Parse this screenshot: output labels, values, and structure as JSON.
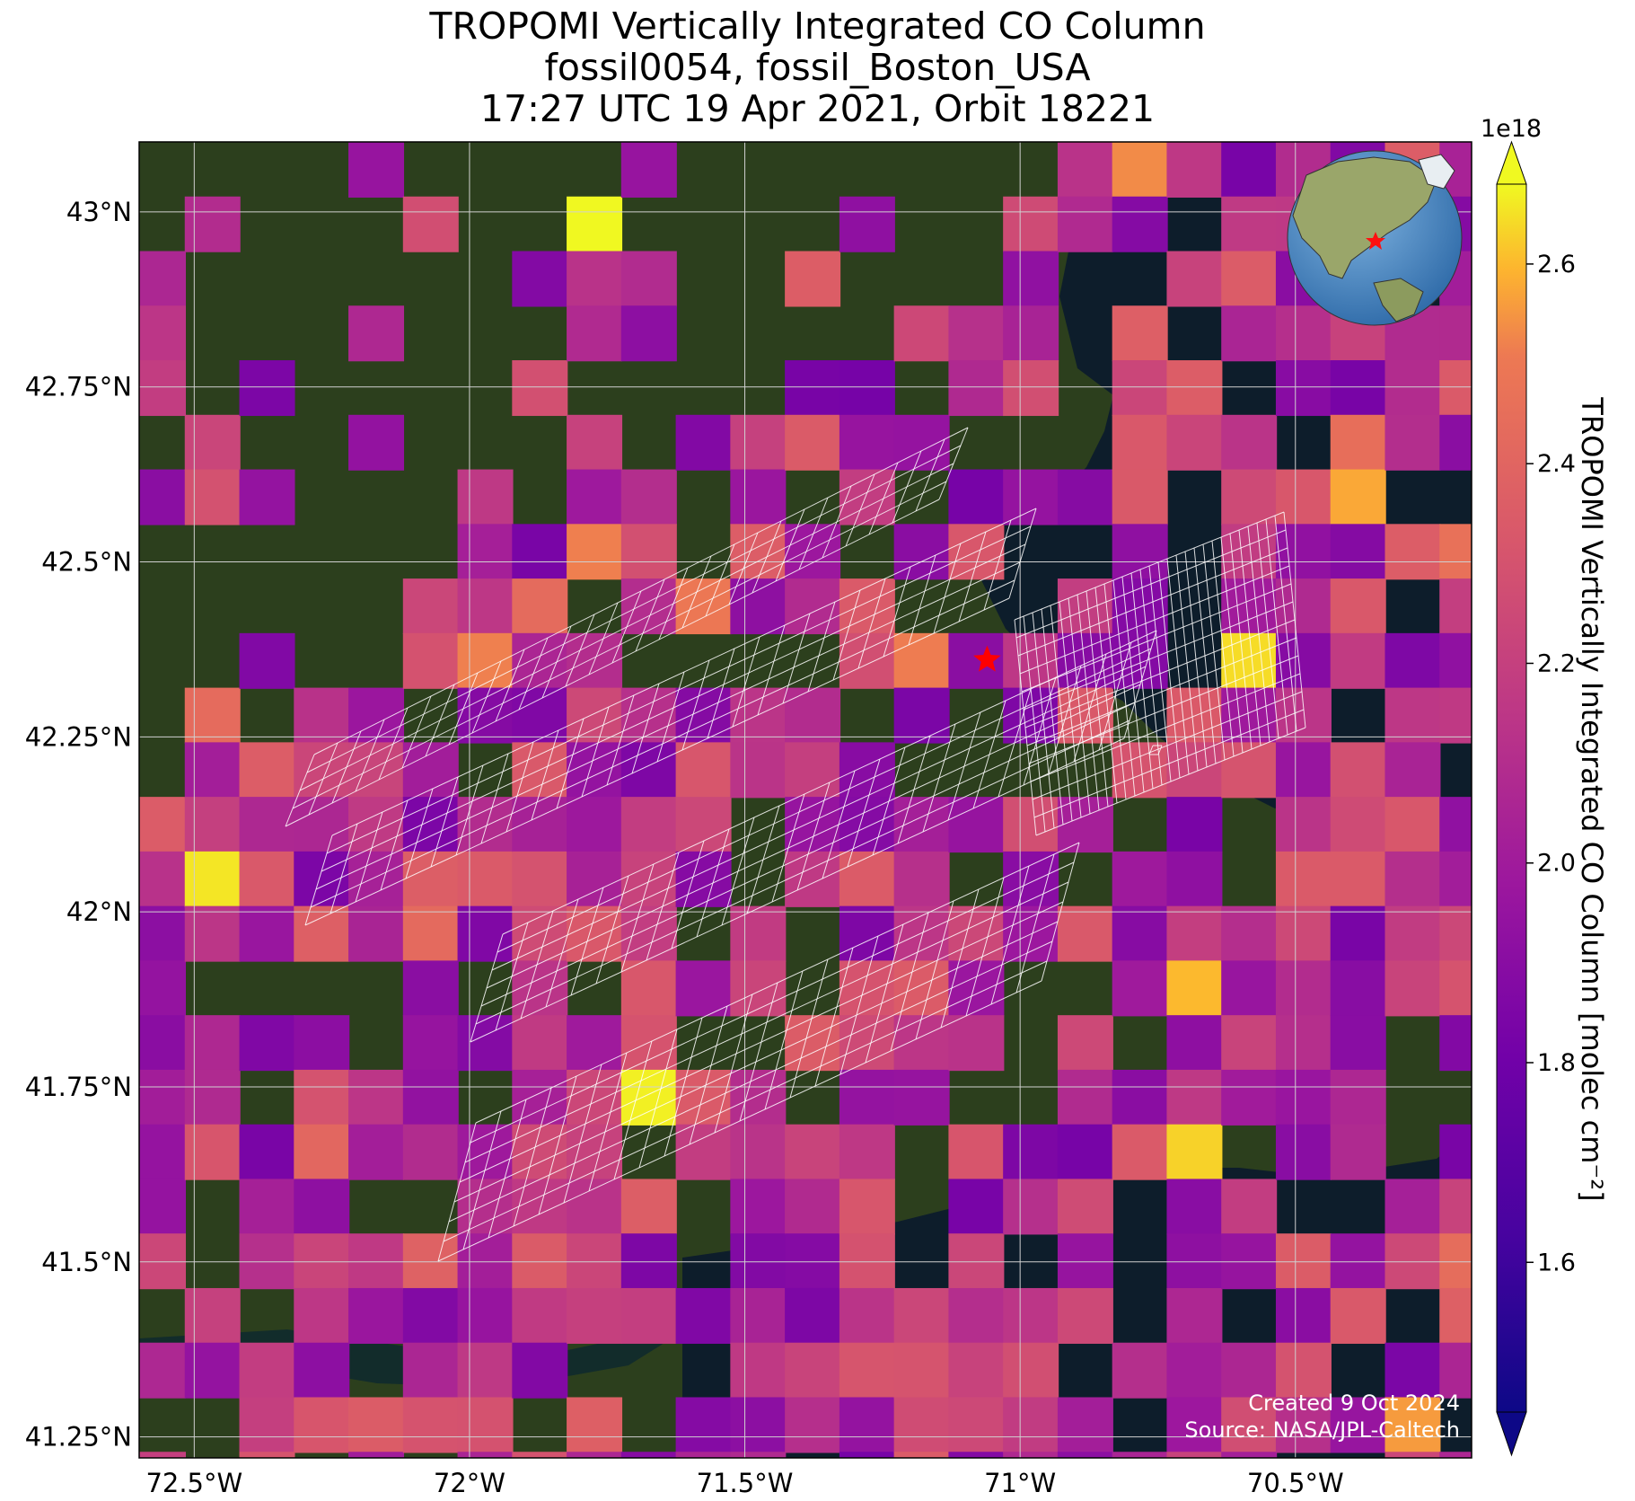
{
  "title": {
    "line1": "TROPOMI Vertically Integrated CO Column",
    "line2": "fossil0054, fossil_Boston_USA",
    "line3": "17:27 UTC 19 Apr 2021, Orbit 18221"
  },
  "map": {
    "lon_range": [
      -72.6,
      -70.18
    ],
    "lat_range": [
      41.22,
      43.1
    ],
    "x_ticks": [
      {
        "value": -72.5,
        "label": "72.5°W"
      },
      {
        "value": -72.0,
        "label": "72°W"
      },
      {
        "value": -71.5,
        "label": "71.5°W"
      },
      {
        "value": -71.0,
        "label": "71°W"
      },
      {
        "value": -70.5,
        "label": "70.5°W"
      }
    ],
    "y_ticks": [
      {
        "value": 43.0,
        "label": "43°N"
      },
      {
        "value": 42.75,
        "label": "42.75°N"
      },
      {
        "value": 42.5,
        "label": "42.5°N"
      },
      {
        "value": 42.25,
        "label": "42.25°N"
      },
      {
        "value": 42.0,
        "label": "42°N"
      },
      {
        "value": 41.75,
        "label": "41.75°N"
      },
      {
        "value": 41.5,
        "label": "41.5°N"
      },
      {
        "value": 41.25,
        "label": "41.25°N"
      }
    ],
    "grid": true,
    "marker": {
      "name": "fossil_Boston_USA",
      "lon": -71.06,
      "lat": 42.36,
      "color": "#ff0000"
    },
    "land_color": "#2c3f1d",
    "ocean_color": "#0d1d2b",
    "target_grid_color": "#ffffff"
  },
  "colorbar": {
    "label": "TROPOMI Vertically Integrated CO Column [molec cm⁻²]",
    "multiplier": "1e18",
    "range": [
      1.45,
      2.68
    ],
    "ticks": [
      "1.6",
      "1.8",
      "2.0",
      "2.2",
      "2.4",
      "2.6"
    ],
    "colormap": "plasma",
    "extend": "both"
  },
  "credits": {
    "created": "Created 9 Oct 2024",
    "source": "Source: NASA/JPL-Caltech"
  }
}
